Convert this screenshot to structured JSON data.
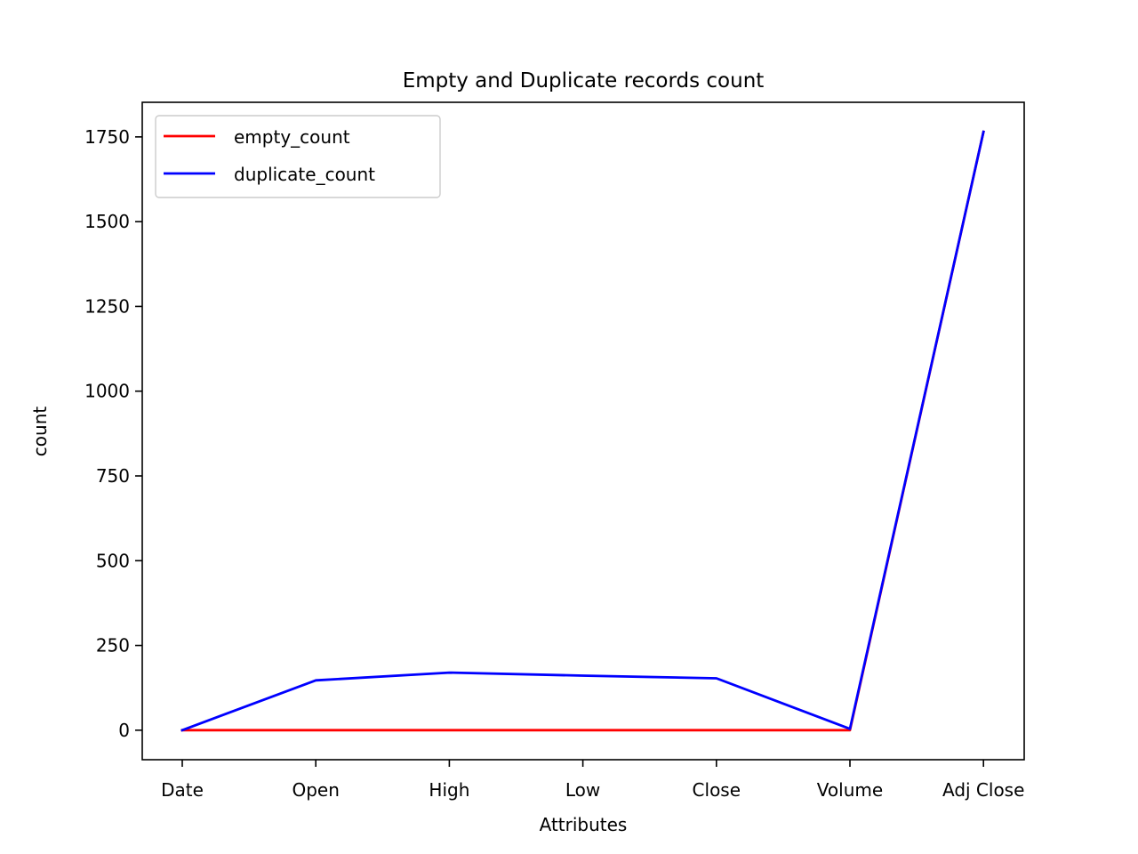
{
  "chart_data": {
    "type": "line",
    "title": "Empty and Duplicate records count",
    "xlabel": "Attributes",
    "ylabel": "count",
    "categories": [
      "Date",
      "Open",
      "High",
      "Low",
      "Close",
      "Volume",
      "Adj Close"
    ],
    "series": [
      {
        "name": "empty_count",
        "color": "#ff0000",
        "values": [
          0,
          0,
          0,
          0,
          0,
          0,
          1765
        ]
      },
      {
        "name": "duplicate_count",
        "color": "#0000ff",
        "values": [
          0,
          147,
          170,
          161,
          153,
          4,
          1765
        ]
      }
    ],
    "ylim": [
      -87,
      1852
    ],
    "yticks": [
      0,
      250,
      500,
      750,
      1000,
      1250,
      1500,
      1750
    ],
    "grid": false,
    "legend_position": "top-left"
  }
}
